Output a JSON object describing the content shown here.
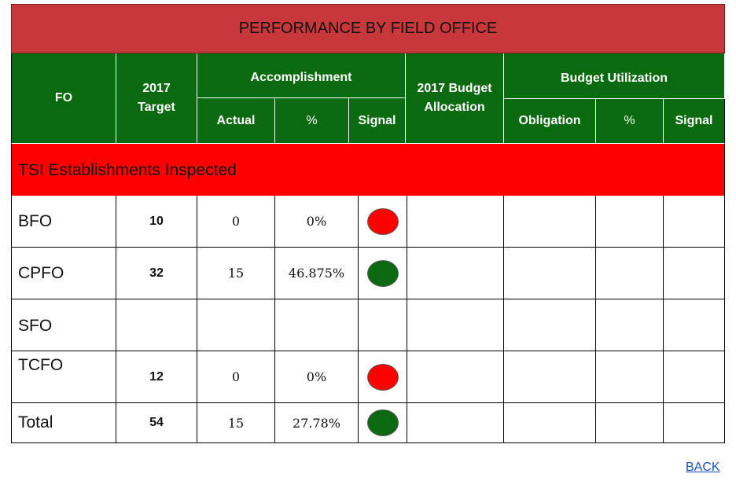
{
  "title": "PERFORMANCE BY FIELD OFFICE",
  "headers": {
    "fo": "FO",
    "target": "2017 Target",
    "accomplishment": "Accomplishment",
    "actual": "Actual",
    "acc_percent": "%",
    "acc_signal": "Signal",
    "budget_allocation": "2017 Budget Allocation",
    "budget_utilization": "Budget Utilization",
    "obligation": "Obligation",
    "bu_percent": "%",
    "bu_signal": "Signal"
  },
  "section": "TSI Establishments Inspected",
  "colors": {
    "title_bg": "#c8373a",
    "header_bg": "#0a6a10",
    "section_bg": "#ff0000",
    "signal_red": "#ff0000",
    "signal_green": "#0a6a10"
  },
  "rows": [
    {
      "fo": "BFO",
      "target": "10",
      "actual": "0",
      "percent": "0%",
      "signal": "red"
    },
    {
      "fo": "CPFO",
      "target": "32",
      "actual": "15",
      "percent": "46.875%",
      "signal": "green"
    },
    {
      "fo": "SFO",
      "target": "",
      "actual": "",
      "percent": "",
      "signal": "none"
    },
    {
      "fo": "TCFO",
      "target": "12",
      "actual": "0",
      "percent": "0%",
      "signal": "red"
    },
    {
      "fo": "Total",
      "target": "54",
      "actual": "15",
      "percent": "27.78%",
      "signal": "green"
    }
  ],
  "back_link": "BACK"
}
